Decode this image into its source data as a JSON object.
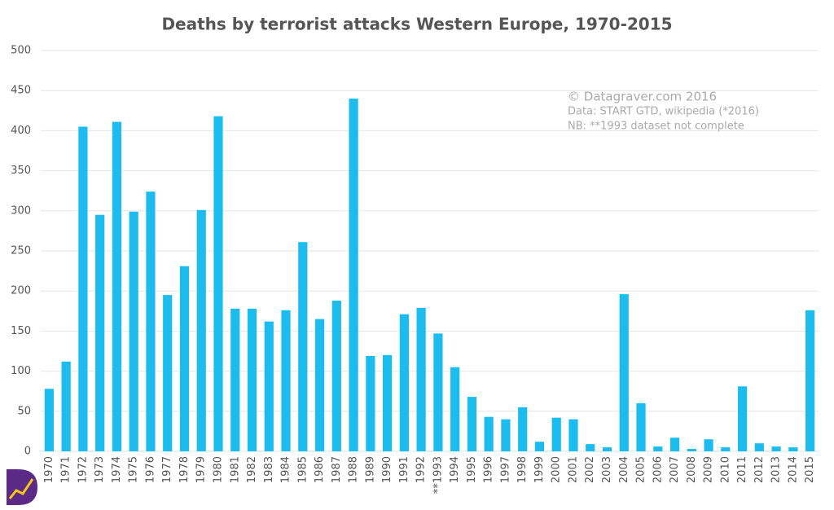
{
  "chart_data": {
    "type": "bar",
    "title": "Deaths by terrorist attacks Western Europe, 1970-2015",
    "categories": [
      "1970",
      "1971",
      "1972",
      "1973",
      "1974",
      "1975",
      "1976",
      "1977",
      "1978",
      "1979",
      "1980",
      "1981",
      "1982",
      "1983",
      "1984",
      "1985",
      "1986",
      "1987",
      "1988",
      "1989",
      "1990",
      "1991",
      "1992",
      "**1993",
      "1994",
      "1995",
      "1996",
      "1997",
      "1998",
      "1999",
      "2000",
      "2001",
      "2002",
      "2003",
      "2004",
      "2005",
      "2006",
      "2007",
      "2008",
      "2009",
      "2010",
      "2011",
      "2012",
      "2013",
      "2014",
      "2015"
    ],
    "values": [
      78,
      112,
      405,
      295,
      411,
      299,
      324,
      195,
      231,
      301,
      418,
      178,
      178,
      162,
      176,
      261,
      165,
      188,
      440,
      119,
      120,
      171,
      179,
      147,
      105,
      68,
      43,
      40,
      55,
      12,
      42,
      40,
      9,
      5,
      196,
      60,
      6,
      17,
      3,
      15,
      5,
      81,
      10,
      6,
      5,
      176
    ],
    "color": "#1cbdee",
    "ylim": [
      0,
      500
    ],
    "yticks": [
      0,
      50,
      100,
      150,
      200,
      250,
      300,
      350,
      400,
      450,
      500
    ],
    "grid": true,
    "annotations": [
      "© Datagraver.com 2016",
      "Data: START GTD, wikipedia (*2016)",
      "NB: **1993 dataset not complete"
    ]
  }
}
